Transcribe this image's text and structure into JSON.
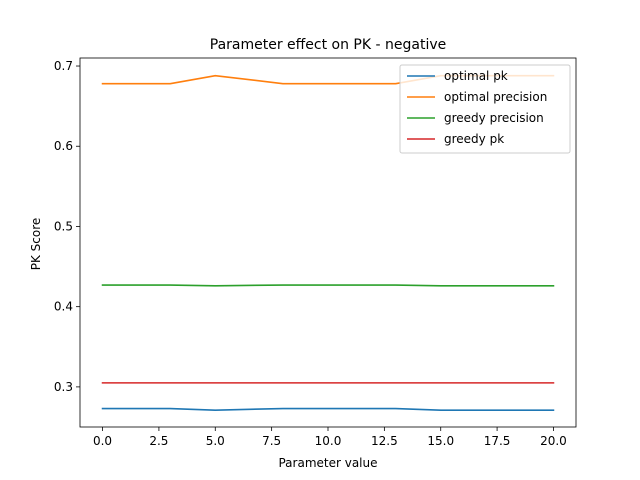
{
  "chart_data": {
    "type": "line",
    "title": "Parameter effect on PK - negative",
    "xlabel": "Parameter value",
    "ylabel": "PK Score",
    "xlim": [
      -1.0,
      21.0
    ],
    "ylim": [
      0.25,
      0.71
    ],
    "x_ticks": [
      "0.0",
      "2.5",
      "5.0",
      "7.5",
      "10.0",
      "12.5",
      "15.0",
      "17.5",
      "20.0"
    ],
    "y_ticks": [
      "0.3",
      "0.4",
      "0.5",
      "0.6",
      "0.7"
    ],
    "x": [
      0,
      3,
      5,
      8,
      10,
      13,
      15,
      18,
      20
    ],
    "grid": false,
    "legend_position": "top-right",
    "series": [
      {
        "name": "optimal pk",
        "color": "#1f77b4",
        "values": [
          0.273,
          0.273,
          0.271,
          0.273,
          0.273,
          0.273,
          0.271,
          0.271,
          0.271
        ]
      },
      {
        "name": "optimal precision",
        "color": "#ff7f0e",
        "values": [
          0.678,
          0.678,
          0.688,
          0.678,
          0.678,
          0.678,
          0.688,
          0.688,
          0.688
        ]
      },
      {
        "name": "greedy precision",
        "color": "#2ca02c",
        "values": [
          0.427,
          0.427,
          0.426,
          0.427,
          0.427,
          0.427,
          0.426,
          0.426,
          0.426
        ]
      },
      {
        "name": "greedy pk",
        "color": "#d62728",
        "values": [
          0.305,
          0.305,
          0.305,
          0.305,
          0.305,
          0.305,
          0.305,
          0.305,
          0.305
        ]
      }
    ]
  }
}
